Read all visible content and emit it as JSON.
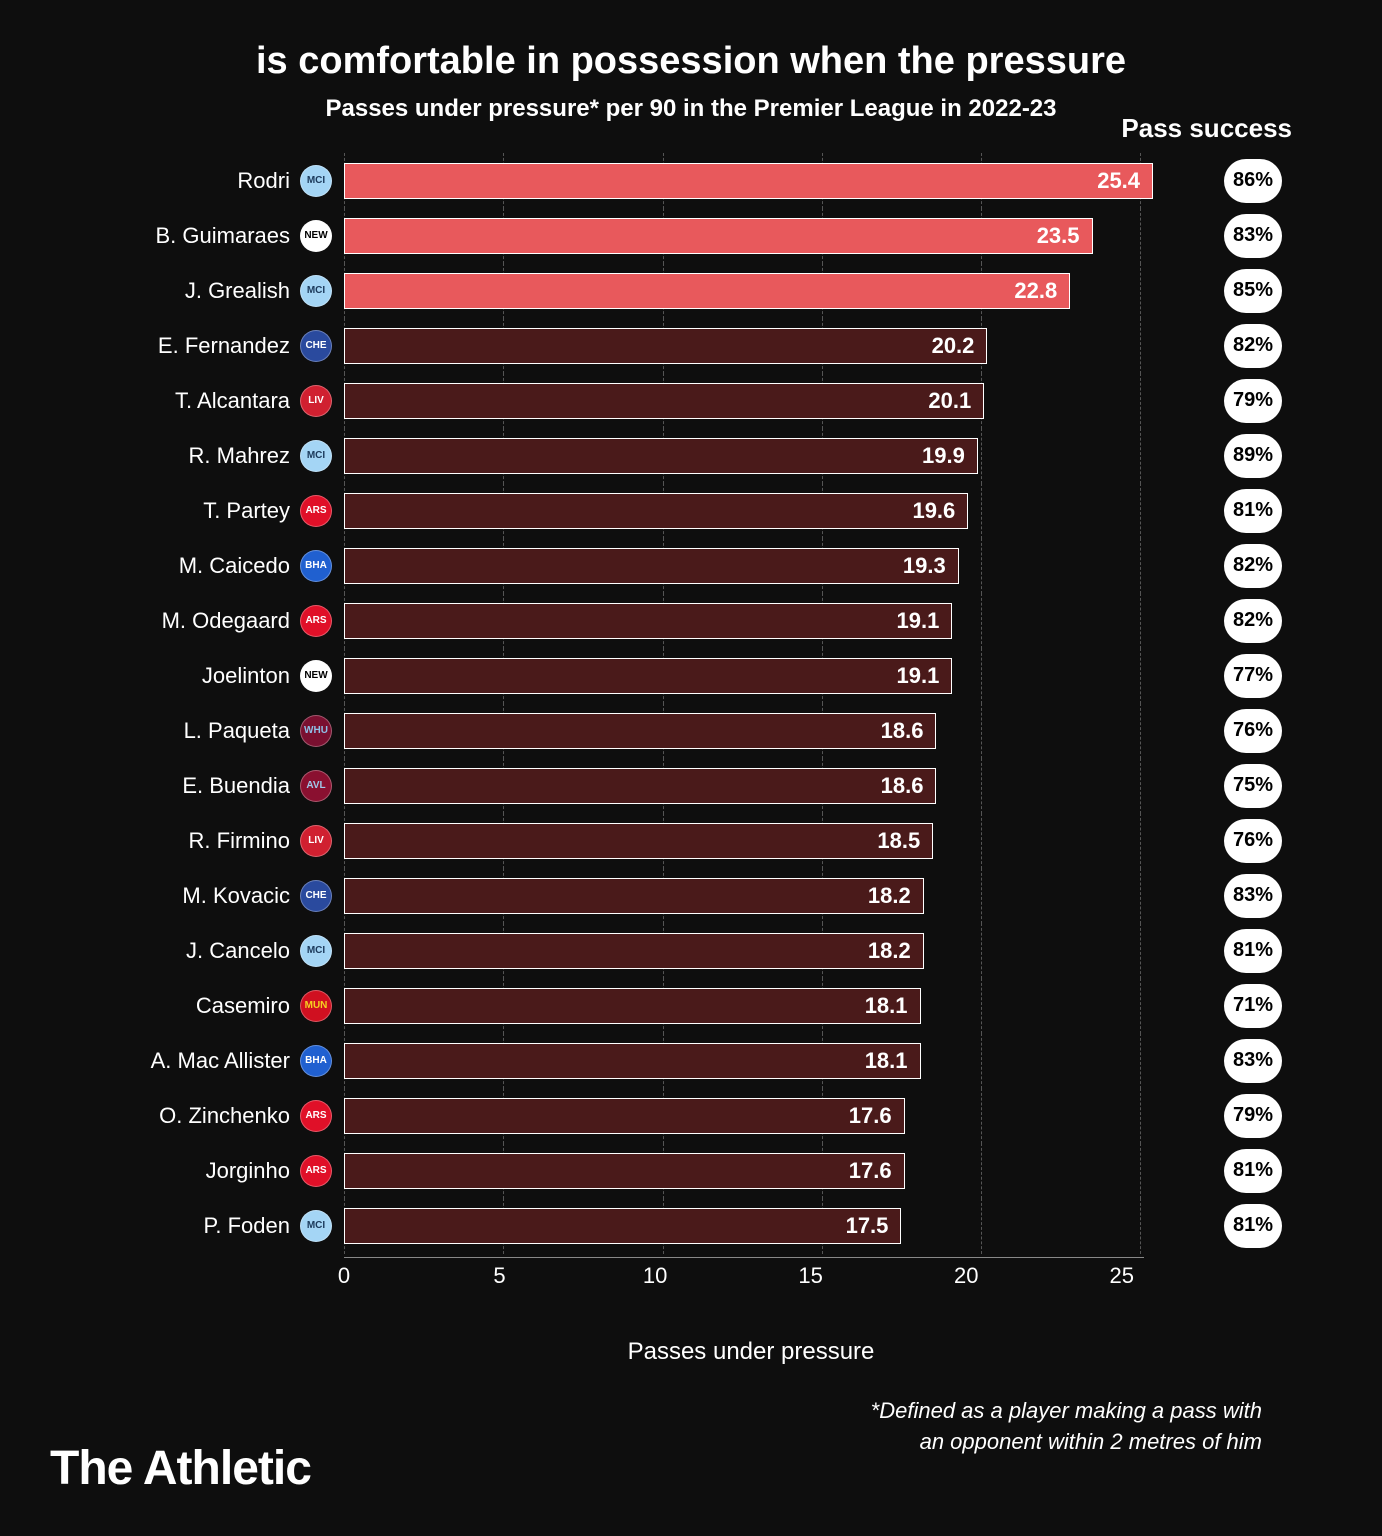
{
  "chart": {
    "type": "bar-horizontal",
    "title": "is comfortable in possession when the pressure",
    "subtitle": "Passes under pressure* per 90 in the Premier League in 2022-23",
    "success_header": "Pass success",
    "x_label": "Passes under pressure",
    "footnote_line1": "*Defined as a player making a pass with",
    "footnote_line2": "an opponent within 2 metres of him",
    "brand": "The Athletic",
    "x_min": 0,
    "x_max": 27,
    "x_ticks": [
      0,
      5,
      10,
      15,
      20,
      25
    ],
    "highlight_color": "#e8595c",
    "normal_color": "#4a1a1a",
    "bar_border": "#ffffff",
    "grid_color": "#555555",
    "background": "#0e0e0e",
    "text_color": "#ffffff",
    "pill_bg": "#ffffff",
    "pill_text": "#000000",
    "title_fontsize": 38,
    "subtitle_fontsize": 24,
    "label_fontsize": 22,
    "players": [
      {
        "name": "Rodri",
        "value": 25.4,
        "success": "86%",
        "highlight": true,
        "club": "MCI",
        "club_bg": "#a4d5f5",
        "club_fg": "#1c3a5b"
      },
      {
        "name": "B. Guimaraes",
        "value": 23.5,
        "success": "83%",
        "highlight": true,
        "club": "NEW",
        "club_bg": "#ffffff",
        "club_fg": "#000000"
      },
      {
        "name": "J. Grealish",
        "value": 22.8,
        "success": "85%",
        "highlight": true,
        "club": "MCI",
        "club_bg": "#a4d5f5",
        "club_fg": "#1c3a5b"
      },
      {
        "name": "E. Fernandez",
        "value": 20.2,
        "success": "82%",
        "highlight": false,
        "club": "CHE",
        "club_bg": "#2a4a9e",
        "club_fg": "#ffffff"
      },
      {
        "name": "T. Alcantara",
        "value": 20.1,
        "success": "79%",
        "highlight": false,
        "club": "LIV",
        "club_bg": "#d02030",
        "club_fg": "#ffffff"
      },
      {
        "name": "R. Mahrez",
        "value": 19.9,
        "success": "89%",
        "highlight": false,
        "club": "MCI",
        "club_bg": "#a4d5f5",
        "club_fg": "#1c3a5b"
      },
      {
        "name": "T. Partey",
        "value": 19.6,
        "success": "81%",
        "highlight": false,
        "club": "ARS",
        "club_bg": "#e01028",
        "club_fg": "#ffffff"
      },
      {
        "name": "M. Caicedo",
        "value": 19.3,
        "success": "82%",
        "highlight": false,
        "club": "BHA",
        "club_bg": "#2060d0",
        "club_fg": "#ffffff"
      },
      {
        "name": "M. Odegaard",
        "value": 19.1,
        "success": "82%",
        "highlight": false,
        "club": "ARS",
        "club_bg": "#e01028",
        "club_fg": "#ffffff"
      },
      {
        "name": "Joelinton",
        "value": 19.1,
        "success": "77%",
        "highlight": false,
        "club": "NEW",
        "club_bg": "#ffffff",
        "club_fg": "#000000"
      },
      {
        "name": "L. Paqueta",
        "value": 18.6,
        "success": "76%",
        "highlight": false,
        "club": "WHU",
        "club_bg": "#7a1030",
        "club_fg": "#90c0e8"
      },
      {
        "name": "E. Buendia",
        "value": 18.6,
        "success": "75%",
        "highlight": false,
        "club": "AVL",
        "club_bg": "#8a1030",
        "club_fg": "#a0c8ea"
      },
      {
        "name": "R. Firmino",
        "value": 18.5,
        "success": "76%",
        "highlight": false,
        "club": "LIV",
        "club_bg": "#d02030",
        "club_fg": "#ffffff"
      },
      {
        "name": "M. Kovacic",
        "value": 18.2,
        "success": "83%",
        "highlight": false,
        "club": "CHE",
        "club_bg": "#2a4a9e",
        "club_fg": "#ffffff"
      },
      {
        "name": "J. Cancelo",
        "value": 18.2,
        "success": "81%",
        "highlight": false,
        "club": "MCI",
        "club_bg": "#a4d5f5",
        "club_fg": "#1c3a5b"
      },
      {
        "name": "Casemiro",
        "value": 18.1,
        "success": "71%",
        "highlight": false,
        "club": "MUN",
        "club_bg": "#d01020",
        "club_fg": "#f5d020"
      },
      {
        "name": "A. Mac Allister",
        "value": 18.1,
        "success": "83%",
        "highlight": false,
        "club": "BHA",
        "club_bg": "#2060d0",
        "club_fg": "#ffffff"
      },
      {
        "name": "O. Zinchenko",
        "value": 17.6,
        "success": "79%",
        "highlight": false,
        "club": "ARS",
        "club_bg": "#e01028",
        "club_fg": "#ffffff"
      },
      {
        "name": "Jorginho",
        "value": 17.6,
        "success": "81%",
        "highlight": false,
        "club": "ARS",
        "club_bg": "#e01028",
        "club_fg": "#ffffff"
      },
      {
        "name": "P. Foden",
        "value": 17.5,
        "success": "81%",
        "highlight": false,
        "club": "MCI",
        "club_bg": "#a4d5f5",
        "club_fg": "#1c3a5b"
      }
    ]
  }
}
